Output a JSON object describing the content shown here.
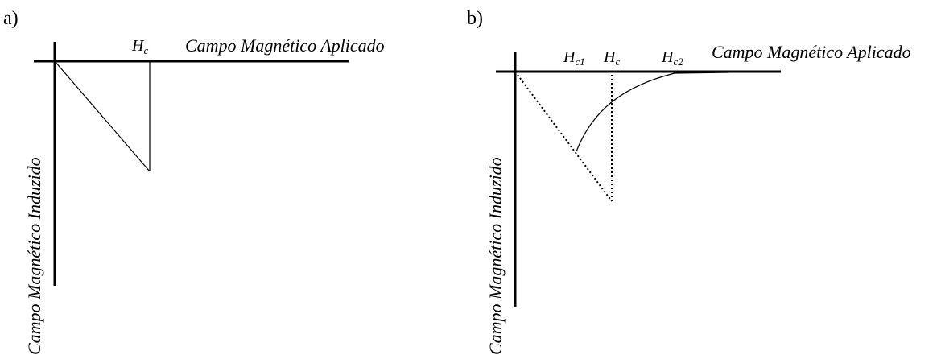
{
  "panel_a": {
    "letter": "a)",
    "x_axis_label": "Campo Magnético Aplicado",
    "y_axis_label": "Campo Magnético Induzido",
    "hc_label": {
      "main": "H",
      "sub": "c"
    }
  },
  "panel_b": {
    "letter": "b)",
    "x_axis_label": "Campo Magnético Aplicado",
    "y_axis_label": "Campo Magnético Induzido",
    "hc1_label": {
      "main": "H",
      "sub": "c1"
    },
    "hc_label": {
      "main": "H",
      "sub": "c"
    },
    "hc2_label": {
      "main": "H",
      "sub": "c2"
    }
  }
}
